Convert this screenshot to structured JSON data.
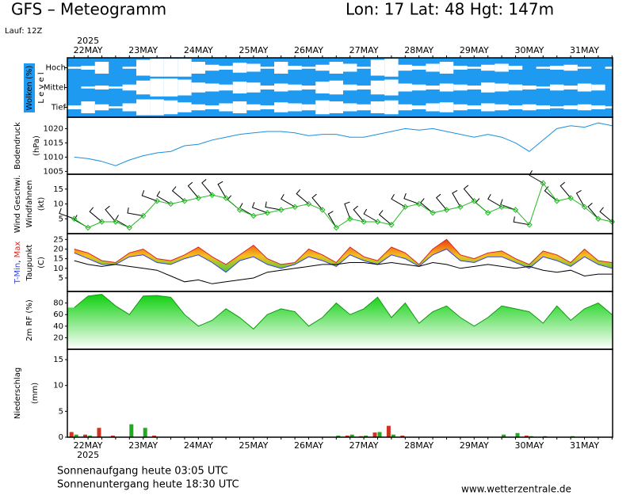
{
  "header": {
    "title": "GFS – Meteogramm",
    "location": "Lon: 17 Lat: 48 Hgt: 147m",
    "run": "Lauf: 12Z"
  },
  "footer": {
    "sunrise": "Sonnenaufgang heute 03:05 UTC",
    "sunset": "Sonnenuntergang heute 18:30 UTC",
    "source": "www.wetterzentrale.de"
  },
  "time_axis": {
    "year": "2025",
    "categories": [
      null,
      "22MAY",
      null,
      null,
      null,
      "23MAY",
      null,
      null,
      null,
      "24MAY",
      null,
      null,
      null,
      "25MAY",
      null,
      null,
      null,
      "26MAY",
      null,
      null,
      null,
      "27MAY",
      null,
      null,
      null,
      "28MAY",
      null,
      null,
      null,
      "29MAY",
      null,
      null,
      null,
      "30MAY",
      null,
      null,
      null,
      "31MAY",
      null,
      null
    ]
  },
  "chart_data": [
    {
      "type": "cloudmap",
      "y_label": "Wolken (%)",
      "y_label2": "L e v e l",
      "color": "#1e9bf0",
      "series": [
        {
          "name": "Hoch",
          "values": [
            10,
            20,
            60,
            0,
            10,
            80,
            90,
            90,
            90,
            60,
            30,
            20,
            50,
            40,
            10,
            60,
            20,
            10,
            30,
            60,
            40,
            10,
            80,
            90,
            30,
            20,
            40,
            60,
            20,
            10,
            30,
            40,
            20,
            0,
            10,
            20,
            30,
            10,
            0,
            10
          ]
        },
        {
          "name": "Mittel",
          "values": [
            0,
            10,
            20,
            10,
            30,
            70,
            90,
            90,
            80,
            50,
            40,
            30,
            60,
            50,
            20,
            40,
            30,
            20,
            60,
            70,
            30,
            20,
            70,
            80,
            40,
            30,
            20,
            40,
            30,
            20,
            50,
            40,
            30,
            20,
            10,
            30,
            20,
            40,
            30,
            0
          ]
        },
        {
          "name": "Tief",
          "values": [
            20,
            60,
            30,
            10,
            40,
            80,
            80,
            70,
            50,
            30,
            20,
            40,
            60,
            30,
            20,
            50,
            40,
            30,
            70,
            60,
            40,
            30,
            60,
            70,
            30,
            20,
            40,
            50,
            30,
            20,
            40,
            30,
            20,
            30,
            20,
            10,
            20,
            30,
            20,
            10
          ]
        }
      ]
    },
    {
      "type": "line",
      "y_label": "Bodendruck",
      "y_unit": "(hPa)",
      "ylim": [
        1004,
        1024
      ],
      "yticks": [
        1005,
        1010,
        1015,
        1020
      ],
      "series": [
        {
          "color": "#1a8fe0",
          "values": [
            1010,
            1009.5,
            1008.5,
            1007,
            1009,
            1010.5,
            1011.5,
            1012,
            1014,
            1014.5,
            1016,
            1017,
            1018,
            1018.5,
            1019,
            1019,
            1018.5,
            1017.5,
            1018,
            1018,
            1017,
            1017,
            1018,
            1019,
            1020,
            1019.5,
            1020,
            1019,
            1018,
            1017,
            1018,
            1017,
            1015,
            1012,
            1016,
            1020,
            1021,
            1020.5,
            1022,
            1021
          ]
        }
      ]
    },
    {
      "type": "wind",
      "y_label2": "Windfahnen",
      "y_unit": "(kt)",
      "ylim": [
        0,
        20
      ],
      "yticks": [
        5,
        10,
        15
      ],
      "series": [
        {
          "name": "Wind Geschwi.",
          "color": "#22bb22",
          "values": [
            5,
            2,
            4,
            4,
            2,
            6,
            11,
            10,
            11,
            12,
            13,
            12,
            8,
            6,
            7,
            8,
            9,
            10,
            8,
            2,
            5,
            4,
            4,
            3,
            9,
            10,
            7,
            8,
            9,
            11,
            7,
            9,
            8,
            3,
            17,
            11,
            12,
            9,
            5,
            4
          ],
          "directions": [
            290,
            300,
            310,
            320,
            300,
            280,
            290,
            300,
            310,
            320,
            320,
            330,
            310,
            300,
            290,
            280,
            300,
            310,
            320,
            330,
            340,
            320,
            300,
            310,
            300,
            290,
            310,
            320,
            330,
            320,
            310,
            300,
            290,
            280,
            300,
            310,
            320,
            330,
            320,
            310
          ]
        }
      ]
    },
    {
      "type": "temperature",
      "label_separator": ", ",
      "y_unit": "(C)",
      "ylim": [
        -2,
        28
      ],
      "yticks": [
        5,
        10,
        15,
        20,
        25
      ],
      "series": [
        {
          "name": "T-Min",
          "color": "#3344dd",
          "values": [
            18,
            15,
            12,
            12,
            16,
            17,
            13,
            12,
            15,
            17,
            13,
            8,
            14,
            16,
            12,
            10,
            12,
            16,
            14,
            11,
            17,
            14,
            12,
            17,
            15,
            11,
            17,
            20,
            14,
            13,
            16,
            16,
            13,
            10,
            16,
            14,
            11,
            16,
            12,
            10
          ]
        },
        {
          "name": "Max",
          "color": "#dd2222",
          "values": [
            20,
            18,
            14,
            13,
            18,
            20,
            15,
            14,
            17,
            21,
            16,
            12,
            17,
            22,
            15,
            12,
            13,
            20,
            17,
            13,
            21,
            16,
            14,
            21,
            18,
            12,
            20,
            25,
            17,
            15,
            18,
            19,
            15,
            12,
            19,
            17,
            13,
            20,
            14,
            13
          ]
        },
        {
          "name": "Taupunkt",
          "color": "#000000",
          "values": [
            14,
            12,
            11,
            12,
            11,
            10,
            9,
            6,
            3,
            4,
            2,
            3,
            4,
            5,
            8,
            9,
            10,
            11,
            12,
            12,
            13,
            13,
            12,
            13,
            12,
            11,
            13,
            12,
            10,
            11,
            12,
            11,
            10,
            11,
            9,
            8,
            9,
            6,
            7,
            7
          ]
        }
      ]
    },
    {
      "type": "area",
      "ylim": [
        0,
        100
      ],
      "yticks": [
        20,
        40,
        60,
        80
      ],
      "series": [
        {
          "name": "2m RF (%)",
          "color": "#22cc22",
          "values": [
            72,
            92,
            95,
            75,
            60,
            92,
            93,
            90,
            60,
            40,
            50,
            70,
            55,
            35,
            60,
            70,
            65,
            40,
            55,
            80,
            60,
            70,
            90,
            55,
            80,
            45,
            65,
            75,
            55,
            40,
            55,
            75,
            70,
            65,
            45,
            75,
            50,
            70,
            80,
            60
          ]
        }
      ]
    },
    {
      "type": "bar",
      "y_label": "Niederschlag",
      "y_unit": "(mm)",
      "ylim": [
        0,
        17
      ],
      "yticks": [
        0,
        5,
        10,
        15
      ],
      "series": [
        {
          "color": "#cc3322",
          "values": [
            1,
            0.5,
            1.8,
            0.3,
            0,
            0,
            0.3,
            0,
            0,
            0,
            0,
            0,
            0,
            0,
            0,
            0,
            0,
            0,
            0,
            0,
            0.3,
            0.2,
            0.9,
            2.2,
            0.3,
            0,
            0,
            0,
            0,
            0,
            0,
            0,
            0,
            0.3,
            0,
            0,
            0,
            0,
            0,
            0
          ]
        },
        {
          "color": "#22aa22",
          "values": [
            0.5,
            0.3,
            0,
            0,
            2.5,
            1.8,
            0,
            0,
            0,
            0,
            0,
            0,
            0,
            0,
            0,
            0,
            0,
            0,
            0,
            0.3,
            0.5,
            0.3,
            1,
            0.5,
            0,
            0,
            0,
            0,
            0,
            0,
            0,
            0.5,
            0.8,
            0.2,
            0.2,
            0,
            0.2,
            0,
            0,
            0
          ]
        }
      ]
    }
  ]
}
